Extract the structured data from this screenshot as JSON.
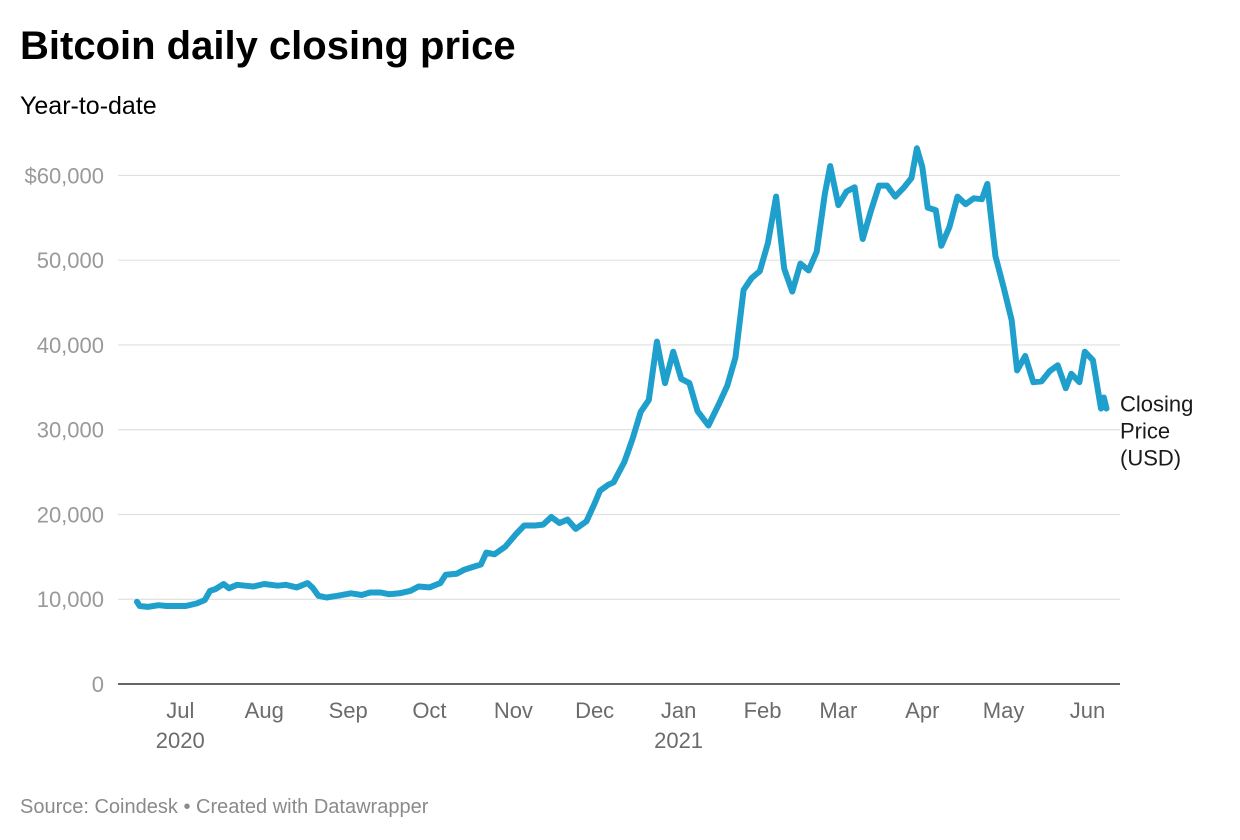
{
  "header": {
    "title": "Bitcoin daily closing price",
    "subtitle": "Year-to-date"
  },
  "footer": {
    "source_label": "Source: Coindesk",
    "separator": "•",
    "credit_label": "Created with Datawrapper"
  },
  "colors": {
    "line": "#1f9fcc",
    "grid": "#e0e0e0",
    "axis": "#333333"
  },
  "chart_data": {
    "type": "line",
    "title": "Bitcoin daily closing price",
    "subtitle": "Year-to-date",
    "xlabel": "",
    "ylabel": "",
    "ylim": [
      0,
      63000
    ],
    "xlim": [
      "2020-06-23",
      "2021-06-28"
    ],
    "grid": "horizontal",
    "legend": "line-end-right",
    "y_ticks": [
      {
        "value": 0,
        "label": "0"
      },
      {
        "value": 10000,
        "label": "10,000"
      },
      {
        "value": 20000,
        "label": "20,000"
      },
      {
        "value": 30000,
        "label": "30,000"
      },
      {
        "value": 40000,
        "label": "40,000"
      },
      {
        "value": 50000,
        "label": "50,000"
      },
      {
        "value": 60000,
        "label": "$60,000"
      }
    ],
    "x_ticks": [
      {
        "date": "2020-07-01",
        "label": "Jul",
        "year": "2020"
      },
      {
        "date": "2020-08-01",
        "label": "Aug"
      },
      {
        "date": "2020-09-01",
        "label": "Sep"
      },
      {
        "date": "2020-10-01",
        "label": "Oct"
      },
      {
        "date": "2020-11-01",
        "label": "Nov"
      },
      {
        "date": "2020-12-01",
        "label": "Dec"
      },
      {
        "date": "2021-01-01",
        "label": "Jan",
        "year": "2021"
      },
      {
        "date": "2021-02-01",
        "label": "Feb"
      },
      {
        "date": "2021-03-01",
        "label": "Mar"
      },
      {
        "date": "2021-04-01",
        "label": "Apr"
      },
      {
        "date": "2021-05-01",
        "label": "May"
      },
      {
        "date": "2021-06-01",
        "label": "Jun"
      }
    ],
    "series": [
      {
        "name": "Closing Price (USD)",
        "name_lines": [
          "Closing",
          "Price",
          "(USD)"
        ],
        "x": [
          "2020-06-30",
          "2020-07-01",
          "2020-07-04",
          "2020-07-08",
          "2020-07-11",
          "2020-07-15",
          "2020-07-18",
          "2020-07-22",
          "2020-07-25",
          "2020-07-27",
          "2020-07-29",
          "2020-08-01",
          "2020-08-03",
          "2020-08-06",
          "2020-08-09",
          "2020-08-12",
          "2020-08-16",
          "2020-08-21",
          "2020-08-24",
          "2020-08-28",
          "2020-09-01",
          "2020-09-03",
          "2020-09-05",
          "2020-09-08",
          "2020-09-12",
          "2020-09-17",
          "2020-09-21",
          "2020-09-24",
          "2020-09-28",
          "2020-10-01",
          "2020-10-05",
          "2020-10-09",
          "2020-10-12",
          "2020-10-16",
          "2020-10-20",
          "2020-10-22",
          "2020-10-26",
          "2020-10-29",
          "2020-11-01",
          "2020-11-04",
          "2020-11-06",
          "2020-11-09",
          "2020-11-13",
          "2020-11-17",
          "2020-11-20",
          "2020-11-24",
          "2020-11-27",
          "2020-11-30",
          "2020-12-03",
          "2020-12-06",
          "2020-12-09",
          "2020-12-13",
          "2020-12-16",
          "2020-12-18",
          "2020-12-21",
          "2020-12-23",
          "2020-12-27",
          "2020-12-30",
          "2021-01-02",
          "2021-01-05",
          "2021-01-08",
          "2021-01-11",
          "2021-01-14",
          "2021-01-17",
          "2021-01-20",
          "2021-01-23",
          "2021-01-27",
          "2021-01-31",
          "2021-02-03",
          "2021-02-06",
          "2021-02-09",
          "2021-02-12",
          "2021-02-15",
          "2021-02-18",
          "2021-02-21",
          "2021-02-24",
          "2021-02-27",
          "2021-03-02",
          "2021-03-05",
          "2021-03-08",
          "2021-03-11",
          "2021-03-13",
          "2021-03-16",
          "2021-03-19",
          "2021-03-22",
          "2021-03-25",
          "2021-03-28",
          "2021-03-31",
          "2021-04-03",
          "2021-04-06",
          "2021-04-09",
          "2021-04-12",
          "2021-04-14",
          "2021-04-16",
          "2021-04-18",
          "2021-04-21",
          "2021-04-23",
          "2021-04-26",
          "2021-04-29",
          "2021-05-02",
          "2021-05-05",
          "2021-05-08",
          "2021-05-10",
          "2021-05-13",
          "2021-05-16",
          "2021-05-19",
          "2021-05-21",
          "2021-05-24",
          "2021-05-27",
          "2021-05-30",
          "2021-06-02",
          "2021-06-05",
          "2021-06-08",
          "2021-06-10",
          "2021-06-13",
          "2021-06-15",
          "2021-06-18",
          "2021-06-21",
          "2021-06-22",
          "2021-06-23"
        ],
        "values": [
          9700,
          9200,
          9100,
          9300,
          9200,
          9200,
          9200,
          9500,
          9900,
          11000,
          11200,
          11800,
          11300,
          11700,
          11600,
          11500,
          11800,
          11600,
          11700,
          11400,
          11900,
          11300,
          10400,
          10200,
          10400,
          10700,
          10500,
          10800,
          10800,
          10600,
          10700,
          11000,
          11500,
          11400,
          11900,
          12900,
          13000,
          13500,
          13800,
          14100,
          15500,
          15300,
          16200,
          17700,
          18700,
          18700,
          18800,
          19700,
          19000,
          19400,
          18300,
          19200,
          21300,
          22800,
          23500,
          23800,
          26200,
          28900,
          32100,
          33500,
          40400,
          35500,
          39200,
          36000,
          35500,
          32200,
          30500,
          33100,
          35200,
          38500,
          46500,
          47900,
          48700,
          52000,
          57500,
          49000,
          46300,
          49600,
          48800,
          51000,
          57800,
          61100,
          56500,
          58100,
          58600,
          52500,
          55800,
          58800,
          58800,
          57500,
          58500,
          59700,
          63200,
          61000,
          56200,
          55900,
          51700,
          53900,
          57500,
          56600,
          57300,
          57200,
          59000,
          50500,
          46800,
          42900,
          37000,
          38700,
          35600,
          35700,
          36900,
          37600,
          34900,
          36600,
          35600,
          39200,
          38200,
          32500,
          33800,
          32500
        ]
      }
    ]
  }
}
